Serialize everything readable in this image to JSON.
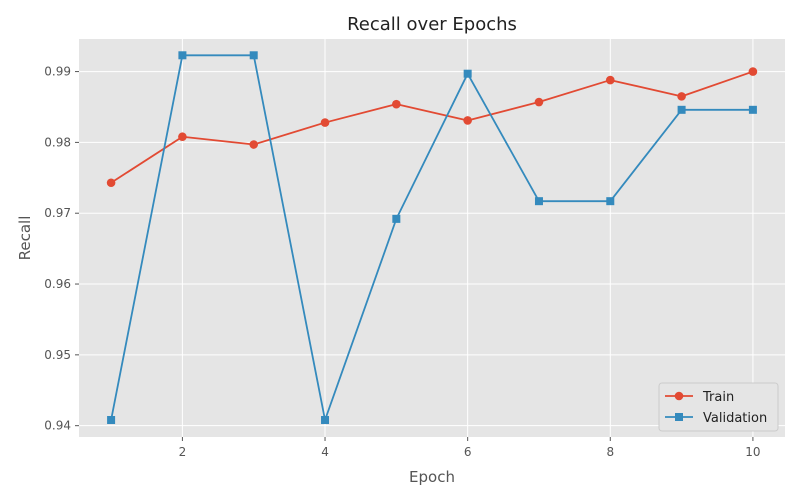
{
  "chart_data": {
    "type": "line",
    "title": "Recall over Epochs",
    "xlabel": "Epoch",
    "ylabel": "Recall",
    "x": [
      1,
      2,
      3,
      4,
      5,
      6,
      7,
      8,
      9,
      10
    ],
    "xlim": [
      0.55,
      10.45
    ],
    "ylim": [
      0.9384,
      0.9946
    ],
    "xticks": [
      2,
      4,
      6,
      8,
      10
    ],
    "yticks": [
      0.94,
      0.95,
      0.96,
      0.97,
      0.98,
      0.99
    ],
    "ytick_labels": [
      "0.94",
      "0.95",
      "0.96",
      "0.97",
      "0.98",
      "0.99"
    ],
    "xtick_labels": [
      "2",
      "4",
      "6",
      "8",
      "10"
    ],
    "grid": true,
    "legend_position": "bottom-right",
    "series": [
      {
        "name": "Train",
        "color": "#E24A33",
        "marker": "circle",
        "values": [
          0.9743,
          0.9808,
          0.9797,
          0.9828,
          0.9854,
          0.9831,
          0.9857,
          0.9888,
          0.9865,
          0.99
        ]
      },
      {
        "name": "Validation",
        "color": "#348ABD",
        "marker": "square",
        "values": [
          0.9408,
          0.9923,
          0.9923,
          0.9408,
          0.9692,
          0.9897,
          0.9717,
          0.9717,
          0.9846,
          0.9846
        ]
      }
    ]
  }
}
